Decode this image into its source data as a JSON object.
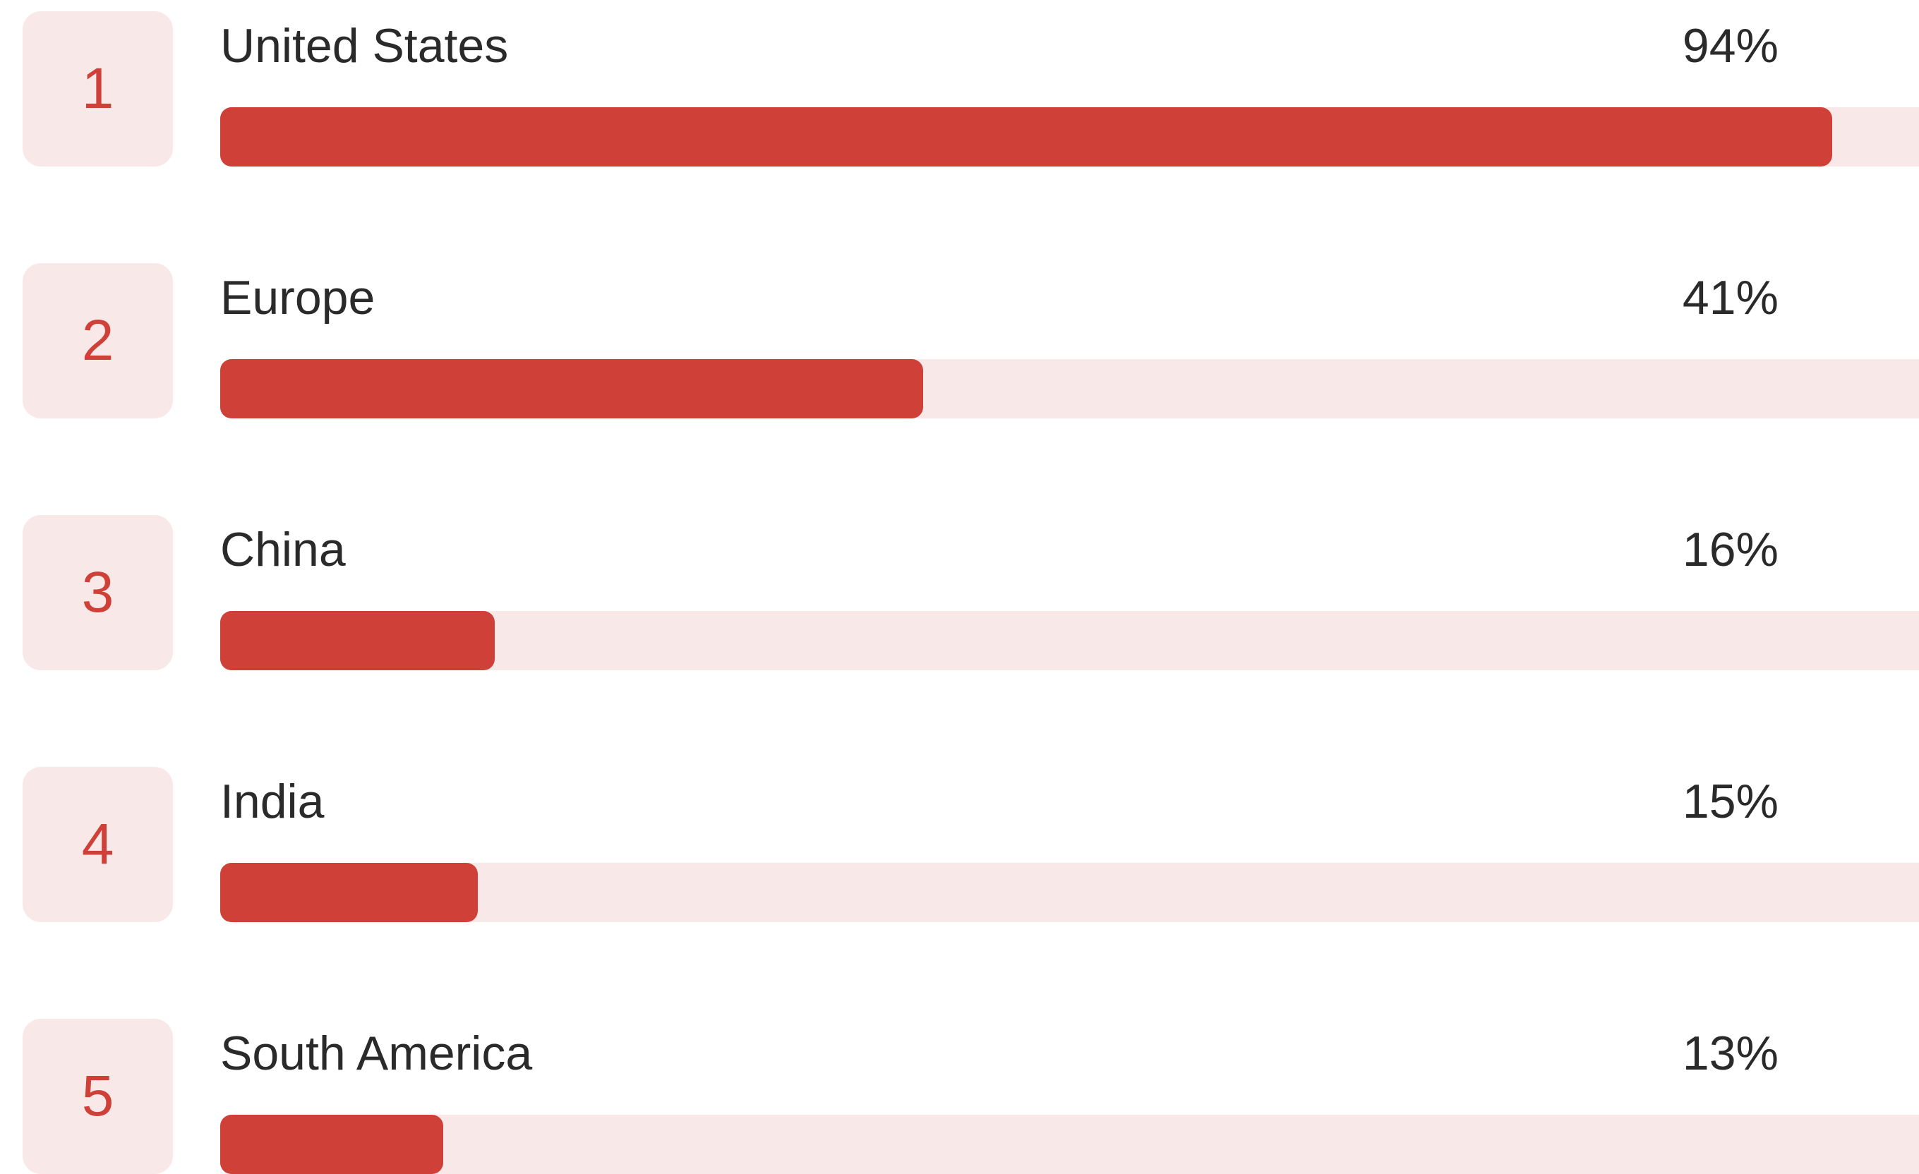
{
  "chart_data": {
    "type": "bar",
    "orientation": "horizontal",
    "categories": [
      "United States",
      "Europe",
      "China",
      "India",
      "South America"
    ],
    "ranks": [
      "1",
      "2",
      "3",
      "4",
      "5"
    ],
    "values": [
      94,
      41,
      16,
      15,
      13
    ],
    "value_labels": [
      "94%",
      "41%",
      "16%",
      "15%",
      "13%"
    ],
    "unit": "%",
    "title": "",
    "xlabel": "",
    "ylabel": "",
    "xlim": [
      0,
      100
    ],
    "grid": false,
    "legend": "none"
  },
  "colors": {
    "bar": "#ce4038",
    "track": "#f9e8e8",
    "rank_text": "#ce4038",
    "label_text": "#2a2a2a"
  }
}
